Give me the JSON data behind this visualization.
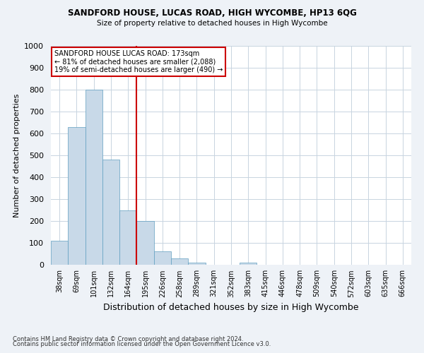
{
  "title": "SANDFORD HOUSE, LUCAS ROAD, HIGH WYCOMBE, HP13 6QG",
  "subtitle": "Size of property relative to detached houses in High Wycombe",
  "xlabel": "Distribution of detached houses by size in High Wycombe",
  "ylabel": "Number of detached properties",
  "bin_labels": [
    "38sqm",
    "69sqm",
    "101sqm",
    "132sqm",
    "164sqm",
    "195sqm",
    "226sqm",
    "258sqm",
    "289sqm",
    "321sqm",
    "352sqm",
    "383sqm",
    "415sqm",
    "446sqm",
    "478sqm",
    "509sqm",
    "540sqm",
    "572sqm",
    "603sqm",
    "635sqm",
    "666sqm"
  ],
  "bar_heights": [
    110,
    630,
    800,
    480,
    250,
    200,
    60,
    30,
    10,
    0,
    0,
    10,
    0,
    0,
    0,
    0,
    0,
    0,
    0,
    0,
    0
  ],
  "bar_color": "#c8d9e8",
  "bar_edge_color": "#5f9ec0",
  "vline_color": "#cc0000",
  "vline_bin_index": 4,
  "ylim": [
    0,
    1000
  ],
  "yticks": [
    0,
    100,
    200,
    300,
    400,
    500,
    600,
    700,
    800,
    900,
    1000
  ],
  "annotation_line1": "SANDFORD HOUSE LUCAS ROAD: 173sqm",
  "annotation_line2": "← 81% of detached houses are smaller (2,088)",
  "annotation_line3": "19% of semi-detached houses are larger (490) →",
  "annotation_box_color": "#cc0000",
  "footer_line1": "Contains HM Land Registry data © Crown copyright and database right 2024.",
  "footer_line2": "Contains public sector information licensed under the Open Government Licence v3.0.",
  "background_color": "#eef2f7",
  "plot_bg_color": "#ffffff",
  "grid_color": "#c8d4e0"
}
